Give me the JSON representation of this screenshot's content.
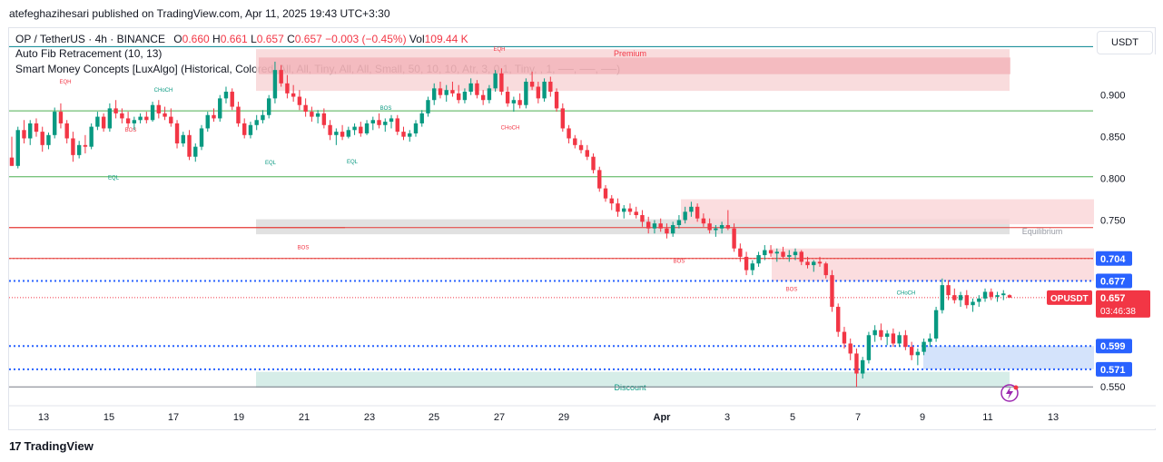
{
  "header": {
    "publisher": "atefeghazihesari published on TradingView.com, Apr 11, 2025 19:43 UTC+3:30"
  },
  "legend": {
    "symbol": "OP / TetherUS · 4h · BINANCE",
    "o_label": "O",
    "o_value": "0.660",
    "h_label": "H",
    "h_value": "0.661",
    "l_label": "L",
    "l_value": "0.657",
    "c_label": "C",
    "c_value": "0.657",
    "change": "−0.003 (−0.45%)",
    "vol_label": "Vol",
    "vol_value": "109.44 K",
    "indicator1": "Auto Fib Retracement (10, 13)",
    "indicator2": "Smart Money Concepts [LuxAlgo] (Historical, Colored, All, All, Tiny, All, All, Small, 50, 10, 10, Atr, 3, 0.1, Tiny, , 1, ──, ──, ──)"
  },
  "currency_button": "USDT",
  "branding": {
    "logo_text": "TradingView",
    "logo_mark": "17"
  },
  "colors": {
    "up": "#089981",
    "down": "#f23645",
    "premium": "#f8d3d5",
    "equilibrium": "#d9d9d9",
    "discount": "#cce9e2",
    "orderblock": "#cfe0fb",
    "dotted_blue": "#2962ff",
    "fib_green": "#4caf50",
    "fib_red": "#e53935"
  },
  "chart_data": {
    "type": "candlestick",
    "symbol": "OPUSDT",
    "timeframe": "4h",
    "ylim": [
      0.535,
      0.965
    ],
    "y_ticks": [
      "0.900",
      "0.850",
      "0.800",
      "0.750",
      "0.550"
    ],
    "x_ticks": [
      "13",
      "15",
      "17",
      "19",
      "21",
      "23",
      "25",
      "27",
      "29",
      "Apr",
      "3",
      "5",
      "7",
      "9",
      "11",
      "13"
    ],
    "price_labels": [
      {
        "value": 0.704,
        "text": "0.704",
        "color": "#2962ff"
      },
      {
        "value": 0.677,
        "text": "0.677",
        "color": "#2962ff"
      },
      {
        "value": 0.599,
        "text": "0.599",
        "color": "#2962ff"
      },
      {
        "value": 0.571,
        "text": "0.571",
        "color": "#2962ff"
      }
    ],
    "last_price": {
      "ticker": "OPUSDT",
      "value": 0.657,
      "text": "0.657",
      "countdown": "03:46:38"
    },
    "zones": [
      {
        "label": "Premium",
        "top": 0.955,
        "bottom": 0.905
      },
      {
        "label": "Equilibrium",
        "top": 0.751,
        "bottom": 0.733
      },
      {
        "label": "Discount",
        "top": 0.568,
        "bottom": 0.549
      }
    ],
    "structure_labels": [
      "EQH",
      "CHoCH",
      "BOS",
      "EQL",
      "EQL",
      "EQL",
      "BOS",
      "EQH",
      "CHoCH",
      "BOS",
      "BOS",
      "BOS",
      "CHoCH"
    ],
    "fib_levels": [
      0.881,
      0.802,
      0.741,
      0.704,
      0.55
    ],
    "candles": [
      [
        0.825,
        0.85,
        0.815,
        0.815
      ],
      [
        0.815,
        0.862,
        0.812,
        0.858
      ],
      [
        0.858,
        0.87,
        0.842,
        0.848
      ],
      [
        0.848,
        0.87,
        0.84,
        0.866
      ],
      [
        0.866,
        0.872,
        0.85,
        0.856
      ],
      [
        0.856,
        0.862,
        0.832,
        0.84
      ],
      [
        0.84,
        0.855,
        0.835,
        0.852
      ],
      [
        0.852,
        0.885,
        0.848,
        0.88
      ],
      [
        0.88,
        0.89,
        0.86,
        0.866
      ],
      [
        0.866,
        0.87,
        0.842,
        0.848
      ],
      [
        0.848,
        0.856,
        0.82,
        0.828
      ],
      [
        0.828,
        0.845,
        0.824,
        0.84
      ],
      [
        0.84,
        0.852,
        0.83,
        0.838
      ],
      [
        0.838,
        0.866,
        0.835,
        0.862
      ],
      [
        0.862,
        0.88,
        0.858,
        0.874
      ],
      [
        0.874,
        0.878,
        0.856,
        0.86
      ],
      [
        0.86,
        0.89,
        0.856,
        0.884
      ],
      [
        0.884,
        0.894,
        0.872,
        0.878
      ],
      [
        0.878,
        0.884,
        0.866,
        0.872
      ],
      [
        0.872,
        0.88,
        0.86,
        0.866
      ],
      [
        0.866,
        0.874,
        0.858,
        0.87
      ],
      [
        0.87,
        0.878,
        0.866,
        0.874
      ],
      [
        0.874,
        0.88,
        0.866,
        0.87
      ],
      [
        0.87,
        0.892,
        0.868,
        0.888
      ],
      [
        0.888,
        0.894,
        0.872,
        0.878
      ],
      [
        0.878,
        0.886,
        0.87,
        0.874
      ],
      [
        0.874,
        0.884,
        0.862,
        0.866
      ],
      [
        0.866,
        0.87,
        0.836,
        0.842
      ],
      [
        0.842,
        0.856,
        0.838,
        0.852
      ],
      [
        0.852,
        0.858,
        0.822,
        0.826
      ],
      [
        0.826,
        0.842,
        0.82,
        0.838
      ],
      [
        0.838,
        0.864,
        0.834,
        0.86
      ],
      [
        0.86,
        0.88,
        0.856,
        0.876
      ],
      [
        0.876,
        0.884,
        0.868,
        0.872
      ],
      [
        0.872,
        0.9,
        0.868,
        0.896
      ],
      [
        0.896,
        0.91,
        0.89,
        0.904
      ],
      [
        0.904,
        0.908,
        0.882,
        0.886
      ],
      [
        0.886,
        0.892,
        0.862,
        0.866
      ],
      [
        0.866,
        0.872,
        0.848,
        0.852
      ],
      [
        0.852,
        0.868,
        0.848,
        0.864
      ],
      [
        0.864,
        0.876,
        0.858,
        0.87
      ],
      [
        0.87,
        0.882,
        0.866,
        0.876
      ],
      [
        0.876,
        0.9,
        0.872,
        0.896
      ],
      [
        0.896,
        0.94,
        0.89,
        0.93
      ],
      [
        0.93,
        0.936,
        0.91,
        0.914
      ],
      [
        0.914,
        0.924,
        0.896,
        0.902
      ],
      [
        0.902,
        0.912,
        0.892,
        0.898
      ],
      [
        0.898,
        0.906,
        0.882,
        0.888
      ],
      [
        0.888,
        0.896,
        0.874,
        0.88
      ],
      [
        0.88,
        0.886,
        0.868,
        0.874
      ],
      [
        0.874,
        0.882,
        0.866,
        0.878
      ],
      [
        0.878,
        0.884,
        0.86,
        0.864
      ],
      [
        0.864,
        0.87,
        0.846,
        0.852
      ],
      [
        0.852,
        0.86,
        0.84,
        0.856
      ],
      [
        0.856,
        0.864,
        0.846,
        0.85
      ],
      [
        0.85,
        0.862,
        0.848,
        0.858
      ],
      [
        0.858,
        0.866,
        0.852,
        0.862
      ],
      [
        0.862,
        0.868,
        0.85,
        0.854
      ],
      [
        0.854,
        0.87,
        0.852,
        0.866
      ],
      [
        0.866,
        0.874,
        0.858,
        0.87
      ],
      [
        0.87,
        0.878,
        0.86,
        0.864
      ],
      [
        0.864,
        0.872,
        0.856,
        0.868
      ],
      [
        0.868,
        0.876,
        0.86,
        0.872
      ],
      [
        0.872,
        0.876,
        0.852,
        0.856
      ],
      [
        0.856,
        0.862,
        0.846,
        0.85
      ],
      [
        0.85,
        0.858,
        0.844,
        0.854
      ],
      [
        0.854,
        0.87,
        0.85,
        0.866
      ],
      [
        0.866,
        0.882,
        0.862,
        0.878
      ],
      [
        0.878,
        0.898,
        0.874,
        0.894
      ],
      [
        0.894,
        0.914,
        0.888,
        0.908
      ],
      [
        0.908,
        0.916,
        0.896,
        0.9
      ],
      [
        0.9,
        0.912,
        0.892,
        0.906
      ],
      [
        0.906,
        0.916,
        0.898,
        0.902
      ],
      [
        0.902,
        0.912,
        0.89,
        0.894
      ],
      [
        0.894,
        0.908,
        0.89,
        0.904
      ],
      [
        0.904,
        0.92,
        0.9,
        0.914
      ],
      [
        0.914,
        0.918,
        0.896,
        0.9
      ],
      [
        0.9,
        0.906,
        0.888,
        0.894
      ],
      [
        0.894,
        0.912,
        0.89,
        0.908
      ],
      [
        0.908,
        0.93,
        0.904,
        0.926
      ],
      [
        0.926,
        0.932,
        0.9,
        0.904
      ],
      [
        0.904,
        0.91,
        0.886,
        0.89
      ],
      [
        0.89,
        0.898,
        0.88,
        0.894
      ],
      [
        0.894,
        0.902,
        0.884,
        0.888
      ],
      [
        0.888,
        0.92,
        0.884,
        0.916
      ],
      [
        0.916,
        0.928,
        0.906,
        0.91
      ],
      [
        0.91,
        0.916,
        0.89,
        0.896
      ],
      [
        0.896,
        0.92,
        0.892,
        0.916
      ],
      [
        0.916,
        0.922,
        0.898,
        0.904
      ],
      [
        0.904,
        0.908,
        0.88,
        0.884
      ],
      [
        0.884,
        0.89,
        0.856,
        0.86
      ],
      [
        0.86,
        0.864,
        0.842,
        0.848
      ],
      [
        0.848,
        0.852,
        0.836,
        0.84
      ],
      [
        0.84,
        0.846,
        0.83,
        0.834
      ],
      [
        0.834,
        0.84,
        0.822,
        0.826
      ],
      [
        0.826,
        0.83,
        0.806,
        0.81
      ],
      [
        0.81,
        0.814,
        0.784,
        0.788
      ],
      [
        0.788,
        0.792,
        0.772,
        0.776
      ],
      [
        0.776,
        0.78,
        0.762,
        0.77
      ],
      [
        0.77,
        0.776,
        0.754,
        0.76
      ],
      [
        0.76,
        0.768,
        0.752,
        0.764
      ],
      [
        0.764,
        0.77,
        0.756,
        0.76
      ],
      [
        0.76,
        0.766,
        0.752,
        0.756
      ],
      [
        0.756,
        0.762,
        0.742,
        0.748
      ],
      [
        0.748,
        0.754,
        0.734,
        0.74
      ],
      [
        0.74,
        0.75,
        0.734,
        0.746
      ],
      [
        0.746,
        0.752,
        0.736,
        0.74
      ],
      [
        0.74,
        0.746,
        0.728,
        0.734
      ],
      [
        0.734,
        0.748,
        0.73,
        0.744
      ],
      [
        0.744,
        0.756,
        0.74,
        0.75
      ],
      [
        0.75,
        0.766,
        0.746,
        0.76
      ],
      [
        0.76,
        0.772,
        0.754,
        0.766
      ],
      [
        0.766,
        0.77,
        0.748,
        0.752
      ],
      [
        0.752,
        0.758,
        0.742,
        0.746
      ],
      [
        0.746,
        0.752,
        0.734,
        0.738
      ],
      [
        0.738,
        0.744,
        0.73,
        0.74
      ],
      [
        0.74,
        0.748,
        0.734,
        0.744
      ],
      [
        0.744,
        0.762,
        0.738,
        0.74
      ],
      [
        0.74,
        0.746,
        0.712,
        0.716
      ],
      [
        0.716,
        0.722,
        0.7,
        0.706
      ],
      [
        0.706,
        0.712,
        0.684,
        0.69
      ],
      [
        0.69,
        0.702,
        0.684,
        0.698
      ],
      [
        0.698,
        0.712,
        0.694,
        0.708
      ],
      [
        0.708,
        0.72,
        0.702,
        0.714
      ],
      [
        0.714,
        0.72,
        0.706,
        0.71
      ],
      [
        0.71,
        0.716,
        0.7,
        0.712
      ],
      [
        0.712,
        0.718,
        0.704,
        0.706
      ],
      [
        0.706,
        0.714,
        0.7,
        0.708
      ],
      [
        0.708,
        0.716,
        0.702,
        0.712
      ],
      [
        0.712,
        0.714,
        0.696,
        0.7
      ],
      [
        0.7,
        0.706,
        0.692,
        0.696
      ],
      [
        0.696,
        0.702,
        0.688,
        0.7
      ],
      [
        0.7,
        0.706,
        0.694,
        0.698
      ],
      [
        0.698,
        0.7,
        0.68,
        0.684
      ],
      [
        0.684,
        0.69,
        0.64,
        0.646
      ],
      [
        0.646,
        0.65,
        0.61,
        0.616
      ],
      [
        0.616,
        0.622,
        0.596,
        0.602
      ],
      [
        0.602,
        0.608,
        0.582,
        0.59
      ],
      [
        0.59,
        0.596,
        0.55,
        0.566
      ],
      [
        0.566,
        0.586,
        0.56,
        0.582
      ],
      [
        0.582,
        0.616,
        0.578,
        0.612
      ],
      [
        0.612,
        0.624,
        0.604,
        0.618
      ],
      [
        0.618,
        0.626,
        0.606,
        0.61
      ],
      [
        0.61,
        0.618,
        0.6,
        0.614
      ],
      [
        0.614,
        0.62,
        0.598,
        0.602
      ],
      [
        0.602,
        0.616,
        0.598,
        0.612
      ],
      [
        0.612,
        0.618,
        0.594,
        0.598
      ],
      [
        0.598,
        0.604,
        0.582,
        0.588
      ],
      [
        0.588,
        0.596,
        0.576,
        0.592
      ],
      [
        0.592,
        0.608,
        0.588,
        0.604
      ],
      [
        0.604,
        0.614,
        0.598,
        0.608
      ],
      [
        0.608,
        0.646,
        0.604,
        0.642
      ],
      [
        0.642,
        0.68,
        0.638,
        0.672
      ],
      [
        0.672,
        0.678,
        0.654,
        0.66
      ],
      [
        0.66,
        0.668,
        0.65,
        0.654
      ],
      [
        0.654,
        0.664,
        0.646,
        0.66
      ],
      [
        0.66,
        0.666,
        0.644,
        0.648
      ],
      [
        0.648,
        0.656,
        0.64,
        0.652
      ],
      [
        0.652,
        0.66,
        0.646,
        0.656
      ],
      [
        0.656,
        0.668,
        0.652,
        0.664
      ],
      [
        0.664,
        0.668,
        0.654,
        0.658
      ],
      [
        0.658,
        0.664,
        0.652,
        0.66
      ],
      [
        0.66,
        0.666,
        0.654,
        0.662
      ],
      [
        0.66,
        0.661,
        0.657,
        0.657
      ]
    ]
  }
}
